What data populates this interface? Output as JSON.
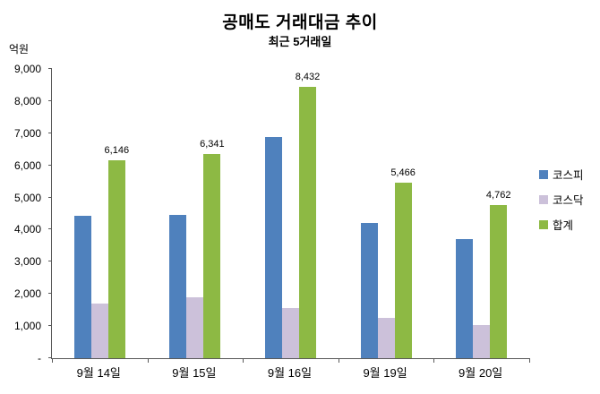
{
  "title": "공매도 거래대금 추이",
  "subtitle": "최근 5거래일",
  "unit_label": "억원",
  "chart_data": {
    "type": "bar",
    "title": "공매도 거래대금 추이",
    "subtitle": "최근 5거래일",
    "ylabel": "억원",
    "xlabel": "",
    "categories": [
      "9월 14일",
      "9월 15일",
      "9월 16일",
      "9월 19일",
      "9월 20일"
    ],
    "series": [
      {
        "name": "코스피",
        "color": "#4F81BD",
        "values": [
          4440,
          4450,
          6870,
          4200,
          3720
        ]
      },
      {
        "name": "코스닥",
        "color": "#CCC1DA",
        "values": [
          1706,
          1891,
          1562,
          1266,
          1042
        ]
      },
      {
        "name": "합계",
        "color": "#8DB944",
        "values": [
          6146,
          6341,
          8432,
          5466,
          4762
        ],
        "data_labels": [
          "6,146",
          "6,341",
          "8,432",
          "5,466",
          "4,762"
        ]
      }
    ],
    "ylim": [
      0,
      9000
    ],
    "ytick_step": 1000,
    "ytick_labels": [
      "-",
      "1,000",
      "2,000",
      "3,000",
      "4,000",
      "5,000",
      "6,000",
      "7,000",
      "8,000",
      "9,000"
    ],
    "grid": false,
    "legend_position": "right",
    "axis_color": "#595959"
  }
}
